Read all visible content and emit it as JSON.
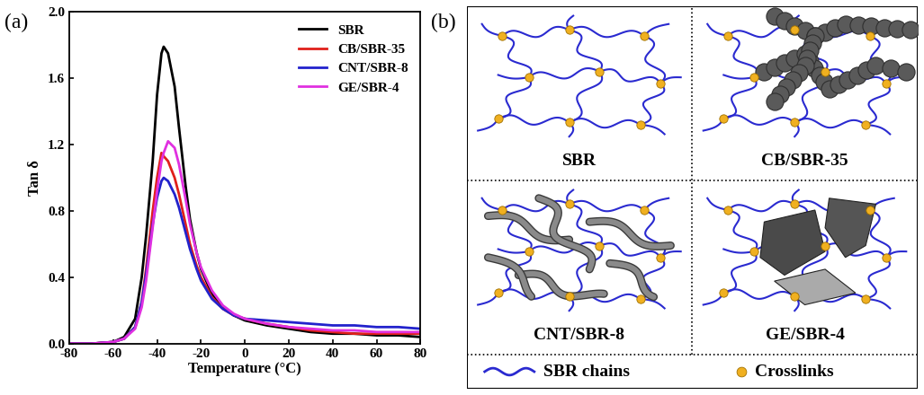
{
  "chart_data": {
    "type": "line",
    "panel": "(a)",
    "x_label": "Temperature (°C)",
    "y_label": "Tan δ",
    "x": [
      -80,
      -70,
      -60,
      -55,
      -50,
      -47,
      -45,
      -42,
      -40,
      -38,
      -37,
      -35,
      -32,
      -30,
      -27,
      -25,
      -22,
      -20,
      -15,
      -10,
      -5,
      0,
      10,
      20,
      30,
      40,
      50,
      60,
      70,
      80
    ],
    "series": [
      {
        "name": "SBR",
        "color": "#000000",
        "values": [
          0,
          0,
          0.01,
          0.04,
          0.15,
          0.4,
          0.65,
          1.1,
          1.5,
          1.75,
          1.79,
          1.75,
          1.55,
          1.3,
          0.95,
          0.75,
          0.55,
          0.45,
          0.3,
          0.22,
          0.17,
          0.14,
          0.11,
          0.09,
          0.07,
          0.06,
          0.06,
          0.05,
          0.05,
          0.04
        ]
      },
      {
        "name": "CB/SBR-35",
        "color": "#e0201b",
        "values": [
          0,
          0,
          0.01,
          0.03,
          0.1,
          0.25,
          0.45,
          0.8,
          1.0,
          1.15,
          1.13,
          1.1,
          1.0,
          0.9,
          0.72,
          0.6,
          0.47,
          0.4,
          0.28,
          0.21,
          0.17,
          0.15,
          0.12,
          0.1,
          0.08,
          0.07,
          0.06,
          0.06,
          0.06,
          0.06
        ]
      },
      {
        "name": "CNT/SBR-8",
        "color": "#2222cc",
        "values": [
          0,
          0,
          0.01,
          0.03,
          0.1,
          0.25,
          0.42,
          0.72,
          0.88,
          0.98,
          1.0,
          0.98,
          0.9,
          0.82,
          0.67,
          0.57,
          0.45,
          0.38,
          0.27,
          0.21,
          0.17,
          0.15,
          0.14,
          0.13,
          0.12,
          0.11,
          0.11,
          0.1,
          0.1,
          0.09
        ]
      },
      {
        "name": "GE/SBR-4",
        "color": "#e030e0",
        "values": [
          0,
          0,
          0.01,
          0.03,
          0.09,
          0.22,
          0.38,
          0.7,
          0.92,
          1.1,
          1.15,
          1.22,
          1.18,
          1.08,
          0.87,
          0.72,
          0.55,
          0.46,
          0.32,
          0.23,
          0.18,
          0.15,
          0.12,
          0.1,
          0.09,
          0.08,
          0.08,
          0.07,
          0.07,
          0.07
        ]
      }
    ],
    "xlim": [
      -80,
      80
    ],
    "xticks": [
      -80,
      -60,
      -40,
      -20,
      0,
      20,
      40,
      60,
      80
    ],
    "ylim": [
      0.0,
      2.0
    ],
    "yticks": [
      0.0,
      0.4,
      0.8,
      1.2,
      1.6,
      2.0
    ],
    "legend": "upper right"
  },
  "diagram": {
    "panel": "(b)",
    "cells": [
      {
        "label": "SBR"
      },
      {
        "label": "CB/SBR-35"
      },
      {
        "label": "CNT/SBR-8"
      },
      {
        "label": "GE/SBR-4"
      }
    ],
    "legend": [
      {
        "label": "SBR chains"
      },
      {
        "label": "Crosslinks"
      }
    ]
  }
}
